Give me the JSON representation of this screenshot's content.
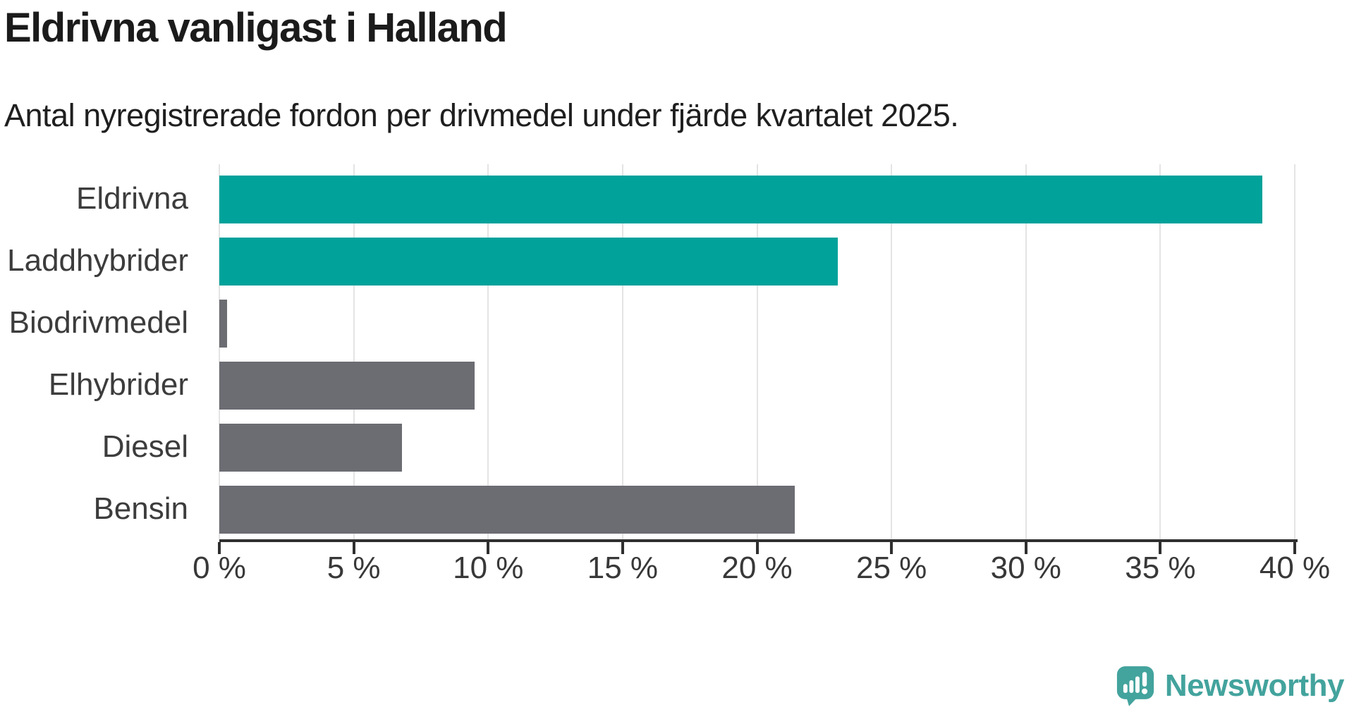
{
  "header": {
    "title": "Eldrivna vanligast i Halland",
    "subtitle": "Antal nyregistrerade fordon per drivmedel under fjärde kvartalet 2025."
  },
  "chart_data": {
    "type": "bar",
    "orientation": "horizontal",
    "title": "Eldrivna vanligast i Halland",
    "subtitle": "Antal nyregistrerade fordon per drivmedel under fjärde kvartalet 2025.",
    "categories": [
      "Eldrivna",
      "Laddhybrider",
      "Biodrivmedel",
      "Elhybrider",
      "Diesel",
      "Bensin"
    ],
    "values": [
      38.8,
      23.0,
      0.3,
      9.5,
      6.8,
      21.4
    ],
    "unit": "%",
    "bar_colors": [
      "#00a29a",
      "#00a29a",
      "#6c6c73",
      "#6c6c73",
      "#6c6c73",
      "#6c6c73"
    ],
    "highlight_color": "#00a29a",
    "default_color": "#6c6c73",
    "xlabel": "",
    "ylabel": "",
    "xlim": [
      0,
      40
    ],
    "x_tick_step": 5,
    "x_tick_labels": [
      "0 %",
      "5 %",
      "10 %",
      "15 %",
      "20 %",
      "25 %",
      "30 %",
      "35 %",
      "40 %"
    ],
    "grid": true,
    "gridline_color": "#e4e4e4",
    "axis_color": "#2f2f2f",
    "legend": "none"
  },
  "footer": {
    "brand": "Newsworthy",
    "brand_color": "#43a39d",
    "logo_icon": "speech-bubble-bar-chart-icon"
  }
}
